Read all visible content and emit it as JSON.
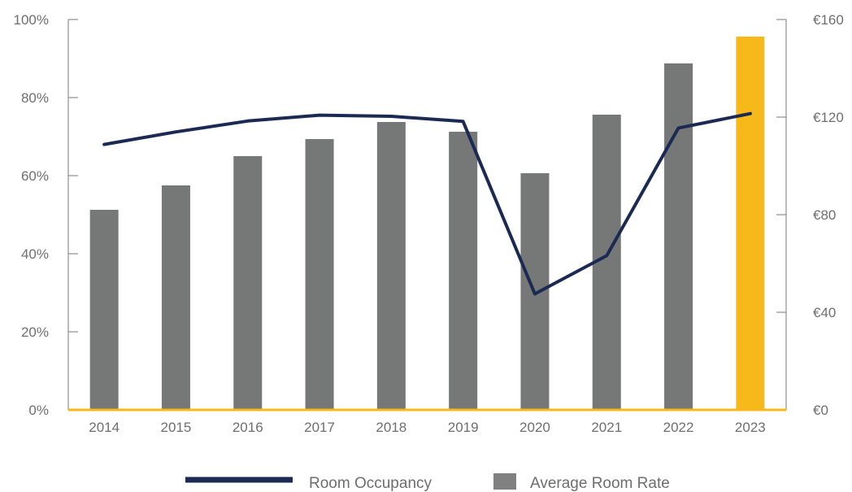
{
  "chart_data": {
    "type": "bar",
    "categories": [
      "2014",
      "2015",
      "2016",
      "2017",
      "2018",
      "2019",
      "2020",
      "2021",
      "2022",
      "2023"
    ],
    "series": [
      {
        "name": "Average Room Rate",
        "kind": "bar",
        "axis": "right",
        "values": [
          82,
          92,
          104,
          111,
          118,
          114,
          97,
          121,
          142,
          153
        ],
        "color": "#767878",
        "highlight": {
          "category": "2023",
          "color": "#f6b919"
        }
      },
      {
        "name": "Room Occupancy",
        "kind": "line",
        "axis": "left",
        "values": [
          68,
          71.2,
          74,
          75.5,
          75.2,
          73.9,
          29.7,
          39.5,
          72.2,
          75.9
        ],
        "color": "#1b2a52"
      }
    ],
    "y_left": {
      "ylim": [
        0,
        100
      ],
      "ticks": [
        0,
        20,
        40,
        60,
        80,
        100
      ],
      "tick_labels": [
        "0%",
        "20%",
        "40%",
        "60%",
        "80%",
        "100%"
      ]
    },
    "y_right": {
      "ylim": [
        0,
        160
      ],
      "ticks": [
        0,
        40,
        80,
        120,
        160
      ],
      "tick_labels": [
        "€0",
        "€40",
        "€80",
        "€120",
        "€160"
      ]
    },
    "baseline_color": "#f6b919",
    "axis_color": "#7a7a7a",
    "grid": false,
    "legend": {
      "position": "bottom",
      "items": [
        {
          "label": "Room Occupancy",
          "type": "line",
          "color": "#1b2a52"
        },
        {
          "label": "Average Room Rate",
          "type": "box",
          "color": "#808080"
        }
      ]
    },
    "title": "",
    "xlabel": "",
    "ylabel": ""
  }
}
